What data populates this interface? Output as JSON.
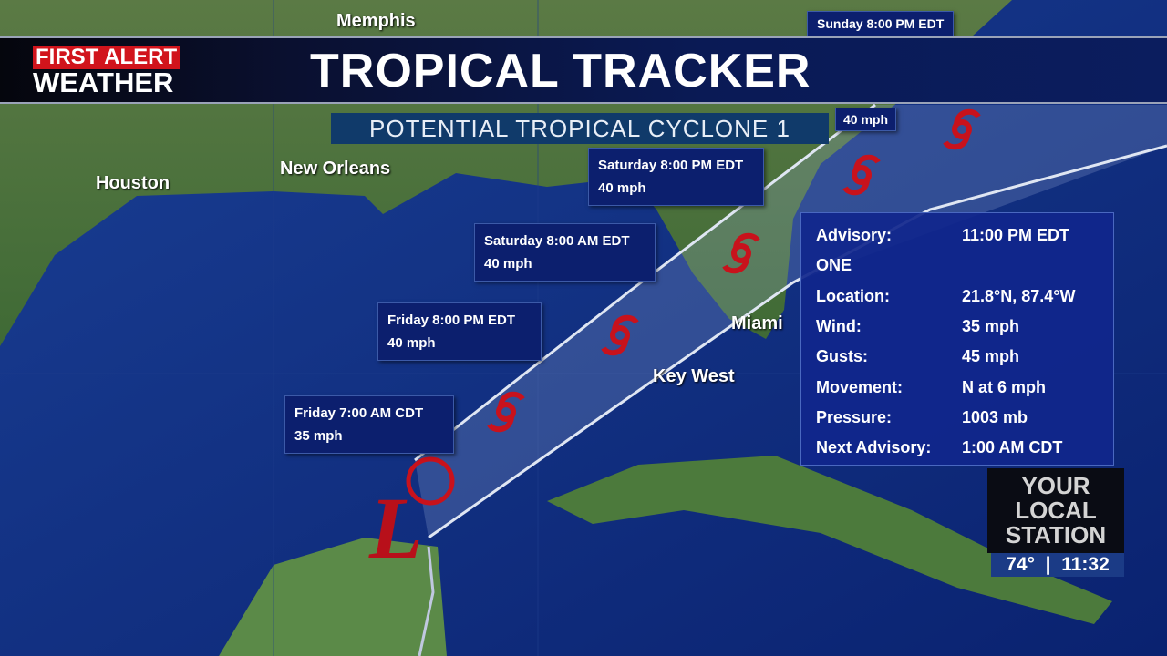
{
  "header": {
    "logo_line1": "FIRST ALERT",
    "logo_line2": "WEATHER",
    "title": "TROPICAL TRACKER",
    "subtitle": "POTENTIAL TROPICAL CYCLONE 1"
  },
  "cities": {
    "memphis": "Memphis",
    "houston": "Houston",
    "new_orleans": "New Orleans",
    "miami": "Miami",
    "key_west": "Key West"
  },
  "forecast_points": [
    {
      "time": "Friday 7:00 AM CDT",
      "wind": "35 mph"
    },
    {
      "time": "Friday 8:00 PM EDT",
      "wind": "40 mph"
    },
    {
      "time": "Saturday 8:00 AM EDT",
      "wind": "40 mph"
    },
    {
      "time": "Saturday 8:00 PM EDT",
      "wind": "40 mph"
    },
    {
      "time": "",
      "wind": "40 mph"
    },
    {
      "time": "Sunday 8:00 PM EDT",
      "wind": ""
    }
  ],
  "advisory": {
    "rows": [
      {
        "k": "Advisory:",
        "v": "11:00 PM EDT"
      },
      {
        "k": "ONE",
        "v": ""
      },
      {
        "k": "Location:",
        "v": "21.8°N, 87.4°W"
      },
      {
        "k": "Wind:",
        "v": "35 mph"
      },
      {
        "k": "Gusts:",
        "v": "45 mph"
      },
      {
        "k": "Movement:",
        "v": "N at 6 mph"
      },
      {
        "k": "Pressure:",
        "v": "1003 mb"
      },
      {
        "k": "Next Advisory:",
        "v": "1:00 AM CDT"
      }
    ]
  },
  "station": {
    "name_lines": [
      "YOUR",
      "LOCAL",
      "STATION"
    ],
    "temp": "74°",
    "time": "11:32"
  },
  "icons": {
    "low": "low-pressure-L-icon",
    "storm": "tropical-storm-icon"
  },
  "colors": {
    "storm_red": "#c8121c",
    "ocean": "#0d2a7a",
    "land": "#4f7a3c"
  }
}
